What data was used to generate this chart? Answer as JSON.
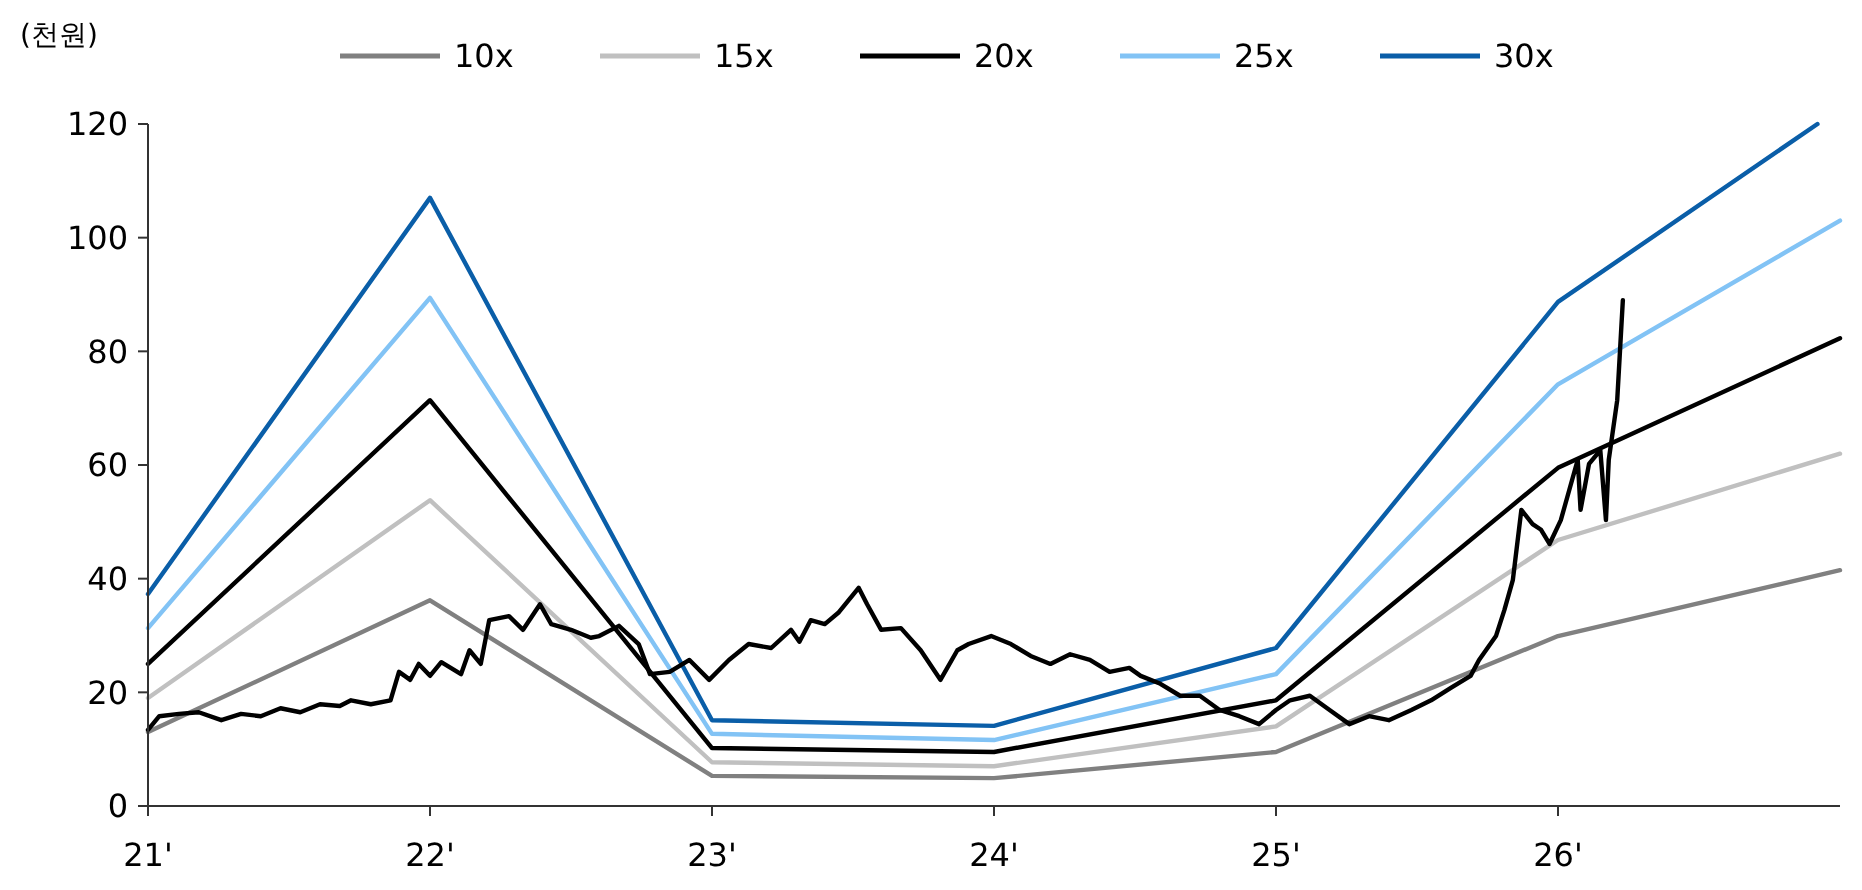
{
  "chart_data": {
    "type": "line",
    "ylabel": "(천원)",
    "legend": "top",
    "grid": false,
    "marker": "none",
    "line_style": "solid",
    "x": [
      21,
      22,
      23,
      24,
      25,
      26,
      27
    ],
    "xlim": [
      21,
      27
    ],
    "xticks": [
      {
        "value": 21,
        "label": "21'"
      },
      {
        "value": 22,
        "label": "22'"
      },
      {
        "value": 23,
        "label": "23'"
      },
      {
        "value": 24,
        "label": "24'"
      },
      {
        "value": 25,
        "label": "25'"
      },
      {
        "value": 26,
        "label": "26'"
      }
    ],
    "ylim": [
      0,
      120
    ],
    "yticks": [
      0,
      20,
      40,
      60,
      80,
      100,
      120
    ],
    "series": [
      {
        "name": "10x",
        "color": "#808080",
        "values": [
          13,
          36.2,
          5.3,
          4.9,
          9.5,
          29.9,
          41.5
        ]
      },
      {
        "name": "15x",
        "color": "#c0c0c0",
        "values": [
          19,
          53.8,
          7.7,
          7,
          14,
          46.8,
          62
        ]
      },
      {
        "name": "20x",
        "color": "#000000",
        "values": [
          25,
          71.4,
          10.2,
          9.5,
          18.6,
          59.5,
          82.3
        ]
      },
      {
        "name": "25x",
        "color": "#82c3f5",
        "values": [
          31.3,
          89.4,
          12.7,
          11.6,
          23.2,
          74.2,
          103
        ]
      },
      {
        "name": "30x",
        "color": "#0a5ea8",
        "x": [
          21,
          22,
          23,
          24,
          25,
          26,
          26.92
        ],
        "values": [
          37.3,
          107,
          15.1,
          14.1,
          27.8,
          88.7,
          120
        ]
      },
      {
        "color": "#000000",
        "x": [
          21.0,
          21.04,
          21.11,
          21.18,
          21.26,
          21.33,
          21.4,
          21.47,
          21.54,
          21.61,
          21.68,
          21.72,
          21.79,
          21.86,
          21.89,
          21.93,
          21.96,
          22.0,
          22.04,
          22.11,
          22.14,
          22.18,
          22.21,
          22.28,
          22.33,
          22.39,
          22.43,
          22.5,
          22.57,
          22.6,
          22.67,
          22.74,
          22.78,
          22.85,
          22.92,
          22.99,
          23.06,
          23.13,
          23.21,
          23.28,
          23.31,
          23.35,
          23.4,
          23.45,
          23.52,
          23.55,
          23.6,
          23.67,
          23.74,
          23.81,
          23.87,
          23.91,
          23.99,
          24.06,
          24.13,
          24.2,
          24.27,
          24.34,
          24.41,
          24.48,
          24.52,
          24.59,
          24.66,
          24.73,
          24.8,
          24.87,
          24.94,
          25.0,
          25.05,
          25.12,
          25.19,
          25.26,
          25.33,
          25.4,
          25.48,
          25.55,
          25.62,
          25.69,
          25.72,
          25.78,
          25.81,
          25.84,
          25.87,
          25.91,
          25.94,
          25.97,
          26.01,
          26.04,
          26.07,
          26.08,
          26.11,
          26.15,
          26.17,
          26.18,
          26.21,
          26.22,
          26.23
        ],
        "values": [
          13.4,
          15.8,
          16.2,
          16.5,
          15.1,
          16.2,
          15.8,
          17.2,
          16.5,
          17.9,
          17.6,
          18.6,
          17.9,
          18.6,
          23.6,
          22.2,
          25.0,
          22.9,
          25.3,
          23.2,
          27.4,
          25.0,
          32.7,
          33.4,
          31.0,
          35.5,
          32.0,
          31.0,
          29.6,
          29.9,
          31.7,
          28.5,
          23.2,
          23.6,
          25.7,
          22.2,
          25.7,
          28.5,
          27.8,
          31.0,
          28.9,
          32.7,
          32.0,
          34.1,
          38.4,
          35.5,
          31.0,
          31.3,
          27.4,
          22.2,
          27.4,
          28.5,
          29.9,
          28.5,
          26.4,
          25.0,
          26.7,
          25.7,
          23.6,
          24.3,
          22.9,
          21.5,
          19.4,
          19.4,
          16.9,
          15.8,
          14.4,
          16.9,
          18.6,
          19.4,
          16.9,
          14.4,
          15.8,
          15.1,
          16.9,
          18.6,
          20.8,
          22.9,
          25.7,
          29.9,
          34.5,
          39.8,
          52.1,
          49.6,
          48.6,
          46.1,
          50.3,
          55.6,
          60.9,
          52.1,
          60.2,
          62.6,
          50.3,
          60.9,
          71.4,
          80.2,
          89.0
        ]
      }
    ]
  }
}
